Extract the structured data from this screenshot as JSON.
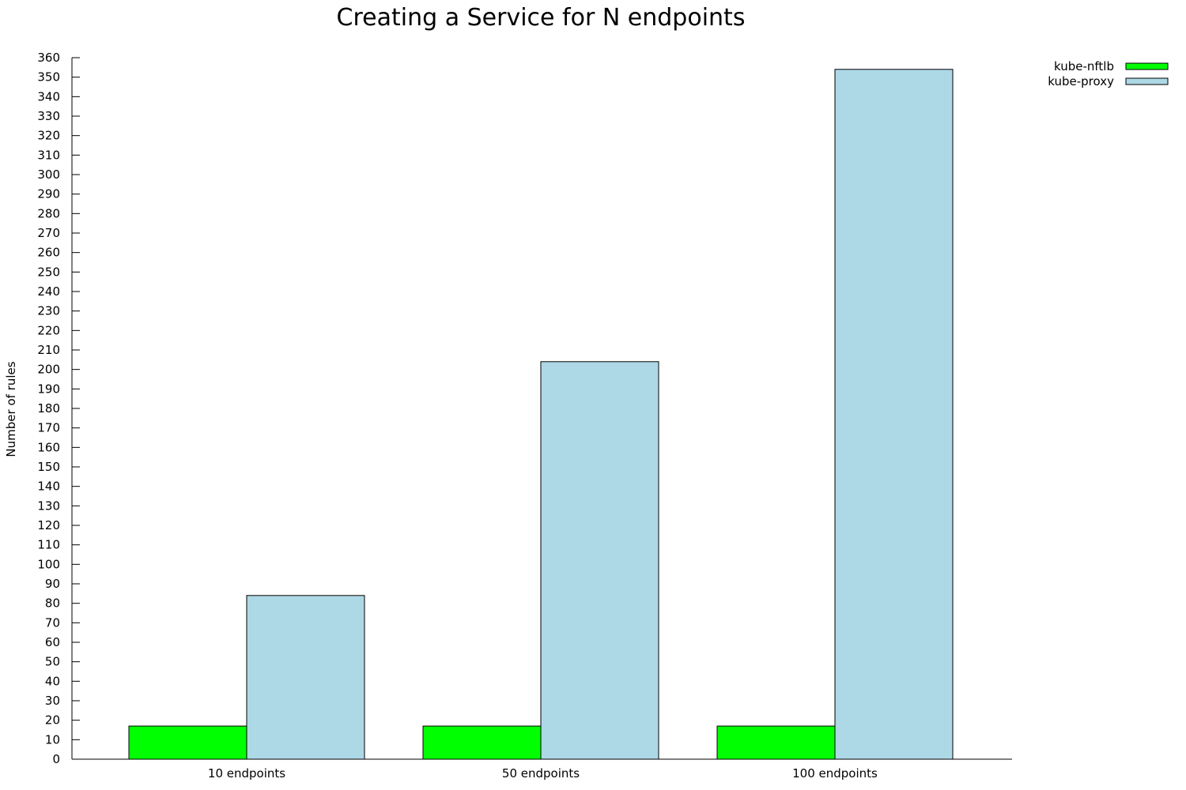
{
  "chart_data": {
    "type": "bar",
    "title": "Creating a Service for N endpoints",
    "xlabel": "",
    "ylabel": "Number of rules",
    "categories": [
      "10 endpoints",
      "50 endpoints",
      "100 endpoints"
    ],
    "series": [
      {
        "name": "kube-nftlb",
        "color": "#00ff00",
        "values": [
          17,
          17,
          17
        ]
      },
      {
        "name": "kube-proxy",
        "color": "#add8e6",
        "values": [
          84,
          204,
          354
        ]
      }
    ],
    "ylim": [
      0,
      360
    ],
    "ytick_step": 10,
    "grid": false,
    "legend_position": "top-right"
  }
}
